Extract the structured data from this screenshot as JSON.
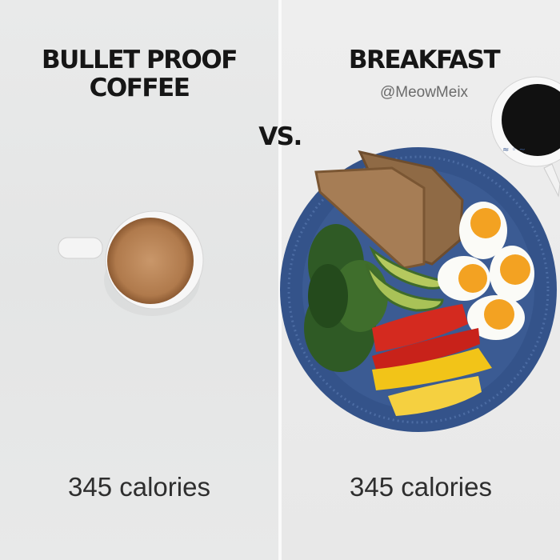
{
  "left": {
    "title_line1": "BULLET PROOF",
    "title_line2": "COFFEE",
    "calories": "345 calories"
  },
  "versus": "VS.",
  "right": {
    "title": "BREAKFAST",
    "credit": "@MeowMeix",
    "calories": "345 calories"
  },
  "colors": {
    "plate": "#3b5b93",
    "coffee_foam": "#b98457",
    "black_coffee": "#111111"
  }
}
